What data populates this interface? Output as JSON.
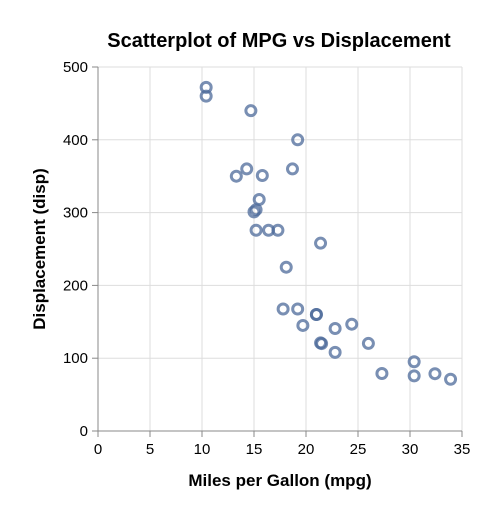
{
  "chart_data": {
    "type": "scatter",
    "title": "Scatterplot of MPG vs Displacement",
    "xlabel": "Miles per Gallon (mpg)",
    "ylabel": "Displacement (disp)",
    "xlim": [
      0,
      35
    ],
    "ylim": [
      0,
      500
    ],
    "xticks": [
      0,
      5,
      10,
      15,
      20,
      25,
      30,
      35
    ],
    "yticks": [
      0,
      100,
      200,
      300,
      400,
      500
    ],
    "grid": true,
    "point_color": "#4c6a99",
    "points": [
      {
        "x": 10.4,
        "y": 472
      },
      {
        "x": 10.4,
        "y": 460
      },
      {
        "x": 14.7,
        "y": 440
      },
      {
        "x": 19.2,
        "y": 400
      },
      {
        "x": 13.3,
        "y": 350
      },
      {
        "x": 14.3,
        "y": 360
      },
      {
        "x": 15.8,
        "y": 351
      },
      {
        "x": 18.7,
        "y": 360
      },
      {
        "x": 15.5,
        "y": 318
      },
      {
        "x": 15.2,
        "y": 304
      },
      {
        "x": 15.0,
        "y": 301
      },
      {
        "x": 15.2,
        "y": 275.8
      },
      {
        "x": 16.4,
        "y": 275.8
      },
      {
        "x": 17.3,
        "y": 275.8
      },
      {
        "x": 21.4,
        "y": 258
      },
      {
        "x": 18.1,
        "y": 225
      },
      {
        "x": 17.8,
        "y": 167.6
      },
      {
        "x": 19.2,
        "y": 167.6
      },
      {
        "x": 21.0,
        "y": 160
      },
      {
        "x": 21.0,
        "y": 160
      },
      {
        "x": 19.7,
        "y": 145
      },
      {
        "x": 24.4,
        "y": 146.7
      },
      {
        "x": 22.8,
        "y": 140.8
      },
      {
        "x": 21.4,
        "y": 121
      },
      {
        "x": 21.5,
        "y": 120.1
      },
      {
        "x": 26.0,
        "y": 120.3
      },
      {
        "x": 22.8,
        "y": 108
      },
      {
        "x": 30.4,
        "y": 95.1
      },
      {
        "x": 27.3,
        "y": 79
      },
      {
        "x": 30.4,
        "y": 75.7
      },
      {
        "x": 32.4,
        "y": 78.7
      },
      {
        "x": 33.9,
        "y": 71.1
      }
    ]
  }
}
